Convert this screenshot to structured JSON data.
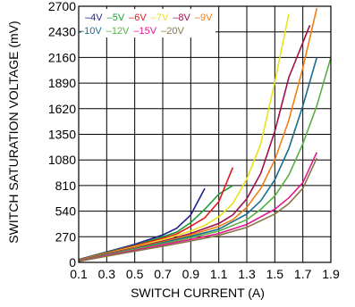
{
  "chart_data": {
    "type": "line",
    "title": "",
    "xlabel": "SWITCH CURRENT (A)",
    "ylabel": "SWITCH SATURATION VOLTAGE (mV)",
    "xlim": [
      0.1,
      1.9
    ],
    "ylim": [
      0,
      2700
    ],
    "x_ticks": [
      "0.1",
      "0.3",
      "0.5",
      "0.7",
      "0.9",
      "1.1",
      "1.3",
      "1.5",
      "1.7",
      "1.9"
    ],
    "y_ticks": [
      "0",
      "270",
      "540",
      "810",
      "1080",
      "1350",
      "1620",
      "1890",
      "2160",
      "2430",
      "2700"
    ],
    "grid": true,
    "legend_position": "top-left",
    "series": [
      {
        "name": "–4V",
        "color": "#1f1f8f",
        "points": [
          [
            0.1,
            30
          ],
          [
            0.3,
            110
          ],
          [
            0.5,
            190
          ],
          [
            0.7,
            290
          ],
          [
            0.8,
            360
          ],
          [
            0.9,
            500
          ],
          [
            1.0,
            780
          ]
        ]
      },
      {
        "name": "–5V",
        "color": "#1a9e3a",
        "points": [
          [
            0.1,
            28
          ],
          [
            0.3,
            105
          ],
          [
            0.5,
            180
          ],
          [
            0.7,
            270
          ],
          [
            0.8,
            320
          ],
          [
            0.9,
            420
          ],
          [
            1.0,
            560
          ],
          [
            1.1,
            720
          ],
          [
            1.2,
            810
          ]
        ]
      },
      {
        "name": "–6V",
        "color": "#e0191f",
        "points": [
          [
            0.1,
            25
          ],
          [
            0.3,
            100
          ],
          [
            0.5,
            175
          ],
          [
            0.7,
            255
          ],
          [
            0.8,
            300
          ],
          [
            0.9,
            380
          ],
          [
            1.0,
            470
          ],
          [
            1.1,
            640
          ],
          [
            1.2,
            1000
          ]
        ]
      },
      {
        "name": "–7V",
        "color": "#e8e31a",
        "points": [
          [
            0.1,
            22
          ],
          [
            0.3,
            95
          ],
          [
            0.5,
            165
          ],
          [
            0.7,
            240
          ],
          [
            0.9,
            330
          ],
          [
            1.0,
            390
          ],
          [
            1.1,
            480
          ],
          [
            1.2,
            620
          ],
          [
            1.3,
            880
          ],
          [
            1.4,
            1250
          ],
          [
            1.5,
            1900
          ],
          [
            1.6,
            2620
          ]
        ]
      },
      {
        "name": "–8V",
        "color": "#a0104a",
        "points": [
          [
            0.1,
            20
          ],
          [
            0.3,
            90
          ],
          [
            0.5,
            155
          ],
          [
            0.7,
            225
          ],
          [
            0.9,
            305
          ],
          [
            1.1,
            410
          ],
          [
            1.2,
            500
          ],
          [
            1.3,
            670
          ],
          [
            1.4,
            940
          ],
          [
            1.5,
            1380
          ],
          [
            1.6,
            1950
          ],
          [
            1.75,
            2500
          ]
        ]
      },
      {
        "name": "–9V",
        "color": "#f07f14",
        "points": [
          [
            0.1,
            18
          ],
          [
            0.3,
            85
          ],
          [
            0.5,
            150
          ],
          [
            0.7,
            215
          ],
          [
            0.9,
            290
          ],
          [
            1.1,
            380
          ],
          [
            1.2,
            450
          ],
          [
            1.3,
            580
          ],
          [
            1.4,
            780
          ],
          [
            1.5,
            1080
          ],
          [
            1.6,
            1500
          ],
          [
            1.7,
            2050
          ],
          [
            1.8,
            2680
          ]
        ]
      },
      {
        "name": "–10V",
        "color": "#1a6e8a",
        "points": [
          [
            0.1,
            16
          ],
          [
            0.3,
            82
          ],
          [
            0.5,
            145
          ],
          [
            0.7,
            208
          ],
          [
            0.9,
            275
          ],
          [
            1.1,
            350
          ],
          [
            1.3,
            510
          ],
          [
            1.4,
            650
          ],
          [
            1.5,
            870
          ],
          [
            1.6,
            1200
          ],
          [
            1.7,
            1650
          ],
          [
            1.8,
            2160
          ]
        ]
      },
      {
        "name": "–12V",
        "color": "#5ab043",
        "points": [
          [
            0.1,
            15
          ],
          [
            0.3,
            78
          ],
          [
            0.5,
            138
          ],
          [
            0.7,
            198
          ],
          [
            0.9,
            260
          ],
          [
            1.1,
            330
          ],
          [
            1.3,
            450
          ],
          [
            1.4,
            560
          ],
          [
            1.5,
            700
          ],
          [
            1.6,
            920
          ],
          [
            1.7,
            1250
          ],
          [
            1.8,
            1650
          ],
          [
            1.9,
            2160
          ]
        ]
      },
      {
        "name": "–15V",
        "color": "#e0198c",
        "points": [
          [
            0.1,
            12
          ],
          [
            0.3,
            72
          ],
          [
            0.5,
            128
          ],
          [
            0.7,
            185
          ],
          [
            0.9,
            242
          ],
          [
            1.1,
            305
          ],
          [
            1.3,
            400
          ],
          [
            1.5,
            560
          ],
          [
            1.6,
            680
          ],
          [
            1.7,
            840
          ],
          [
            1.8,
            1160
          ]
        ]
      },
      {
        "name": "–20V",
        "color": "#8a7545",
        "points": [
          [
            0.1,
            10
          ],
          [
            0.3,
            65
          ],
          [
            0.5,
            118
          ],
          [
            0.7,
            170
          ],
          [
            0.9,
            225
          ],
          [
            1.1,
            285
          ],
          [
            1.3,
            370
          ],
          [
            1.5,
            510
          ],
          [
            1.6,
            620
          ],
          [
            1.7,
            780
          ],
          [
            1.8,
            1100
          ]
        ]
      }
    ]
  }
}
